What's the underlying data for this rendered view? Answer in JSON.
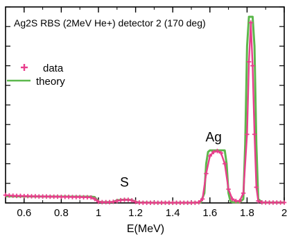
{
  "chart_data": {
    "type": "line",
    "title": "Ag2S RBS (2MeV He+)  detector 2 (170 deg)",
    "xlabel": "E(MeV)",
    "ylabel": "",
    "xlim": [
      0.5,
      2.0
    ],
    "ylim": [
      0,
      1.0
    ],
    "x_ticks": [
      0.6,
      0.8,
      1.0,
      1.2,
      1.4,
      1.6,
      1.8,
      2.0
    ],
    "x_tick_labels": [
      "0.6",
      "0.8",
      "1",
      "1.2",
      "1.4",
      "1.6",
      "1.8",
      "2"
    ],
    "grid": false,
    "legend_position": "top-left",
    "annotations": [
      {
        "text": "S",
        "x": 1.14,
        "y": 0.07
      },
      {
        "text": "Ag",
        "x": 1.62,
        "y": 0.3
      }
    ],
    "series": [
      {
        "name": "data",
        "style": "markers",
        "marker": "+",
        "color": "#e83e8c",
        "x": [
          0.5,
          0.52,
          0.54,
          0.56,
          0.58,
          0.6,
          0.62,
          0.64,
          0.66,
          0.68,
          0.7,
          0.72,
          0.74,
          0.76,
          0.78,
          0.8,
          0.82,
          0.84,
          0.86,
          0.88,
          0.9,
          0.92,
          0.94,
          0.96,
          0.98,
          1.0,
          1.02,
          1.04,
          1.06,
          1.08,
          1.1,
          1.12,
          1.14,
          1.16,
          1.18,
          1.2,
          1.22,
          1.24,
          1.26,
          1.28,
          1.3,
          1.32,
          1.34,
          1.36,
          1.38,
          1.4,
          1.42,
          1.44,
          1.46,
          1.48,
          1.5,
          1.52,
          1.54,
          1.56,
          1.58,
          1.6,
          1.62,
          1.64,
          1.66,
          1.68,
          1.7,
          1.72,
          1.74,
          1.76,
          1.78,
          1.8,
          1.81,
          1.82,
          1.83,
          1.84,
          1.85,
          1.86,
          1.88,
          1.9,
          1.92,
          1.94,
          1.96,
          1.98,
          2.0
        ],
        "y": [
          0.04,
          0.038,
          0.037,
          0.036,
          0.036,
          0.035,
          0.035,
          0.034,
          0.034,
          0.033,
          0.033,
          0.033,
          0.032,
          0.032,
          0.032,
          0.031,
          0.031,
          0.031,
          0.03,
          0.03,
          0.03,
          0.029,
          0.029,
          0.028,
          0.02,
          0.006,
          0.004,
          0.004,
          0.004,
          0.006,
          0.01,
          0.014,
          0.016,
          0.016,
          0.013,
          0.005,
          0.002,
          0.001,
          0.001,
          0.001,
          0.001,
          0.001,
          0.001,
          0.001,
          0.001,
          0.001,
          0.001,
          0.001,
          0.001,
          0.001,
          0.001,
          0.001,
          0.003,
          0.02,
          0.15,
          0.24,
          0.26,
          0.265,
          0.255,
          0.2,
          0.07,
          0.02,
          0.01,
          0.01,
          0.05,
          0.35,
          0.72,
          0.92,
          0.7,
          0.35,
          0.08,
          0.01,
          0.003,
          0.002,
          0.002,
          0.002,
          0.002,
          0.002,
          0.002
        ]
      },
      {
        "name": "theory",
        "style": "line",
        "color": "#5cb84c",
        "x": [
          0.5,
          0.7,
          0.9,
          0.96,
          0.98,
          1.0,
          1.02,
          1.08,
          1.1,
          1.14,
          1.18,
          1.2,
          1.22,
          1.3,
          1.4,
          1.5,
          1.55,
          1.57,
          1.58,
          1.59,
          1.6,
          1.62,
          1.64,
          1.66,
          1.68,
          1.69,
          1.7,
          1.71,
          1.72,
          1.74,
          1.76,
          1.78,
          1.79,
          1.8,
          1.81,
          1.82,
          1.83,
          1.84,
          1.85,
          1.86,
          1.88,
          1.9,
          2.0
        ],
        "y": [
          0.034,
          0.033,
          0.032,
          0.032,
          0.03,
          0.006,
          0.004,
          0.005,
          0.014,
          0.017,
          0.015,
          0.006,
          0.002,
          0.001,
          0.001,
          0.001,
          0.002,
          0.05,
          0.2,
          0.26,
          0.268,
          0.268,
          0.268,
          0.268,
          0.268,
          0.2,
          0.05,
          0.01,
          0.004,
          0.003,
          0.003,
          0.02,
          0.3,
          0.8,
          0.95,
          0.95,
          0.95,
          0.8,
          0.3,
          0.02,
          0.003,
          0.002,
          0.002
        ]
      }
    ]
  }
}
